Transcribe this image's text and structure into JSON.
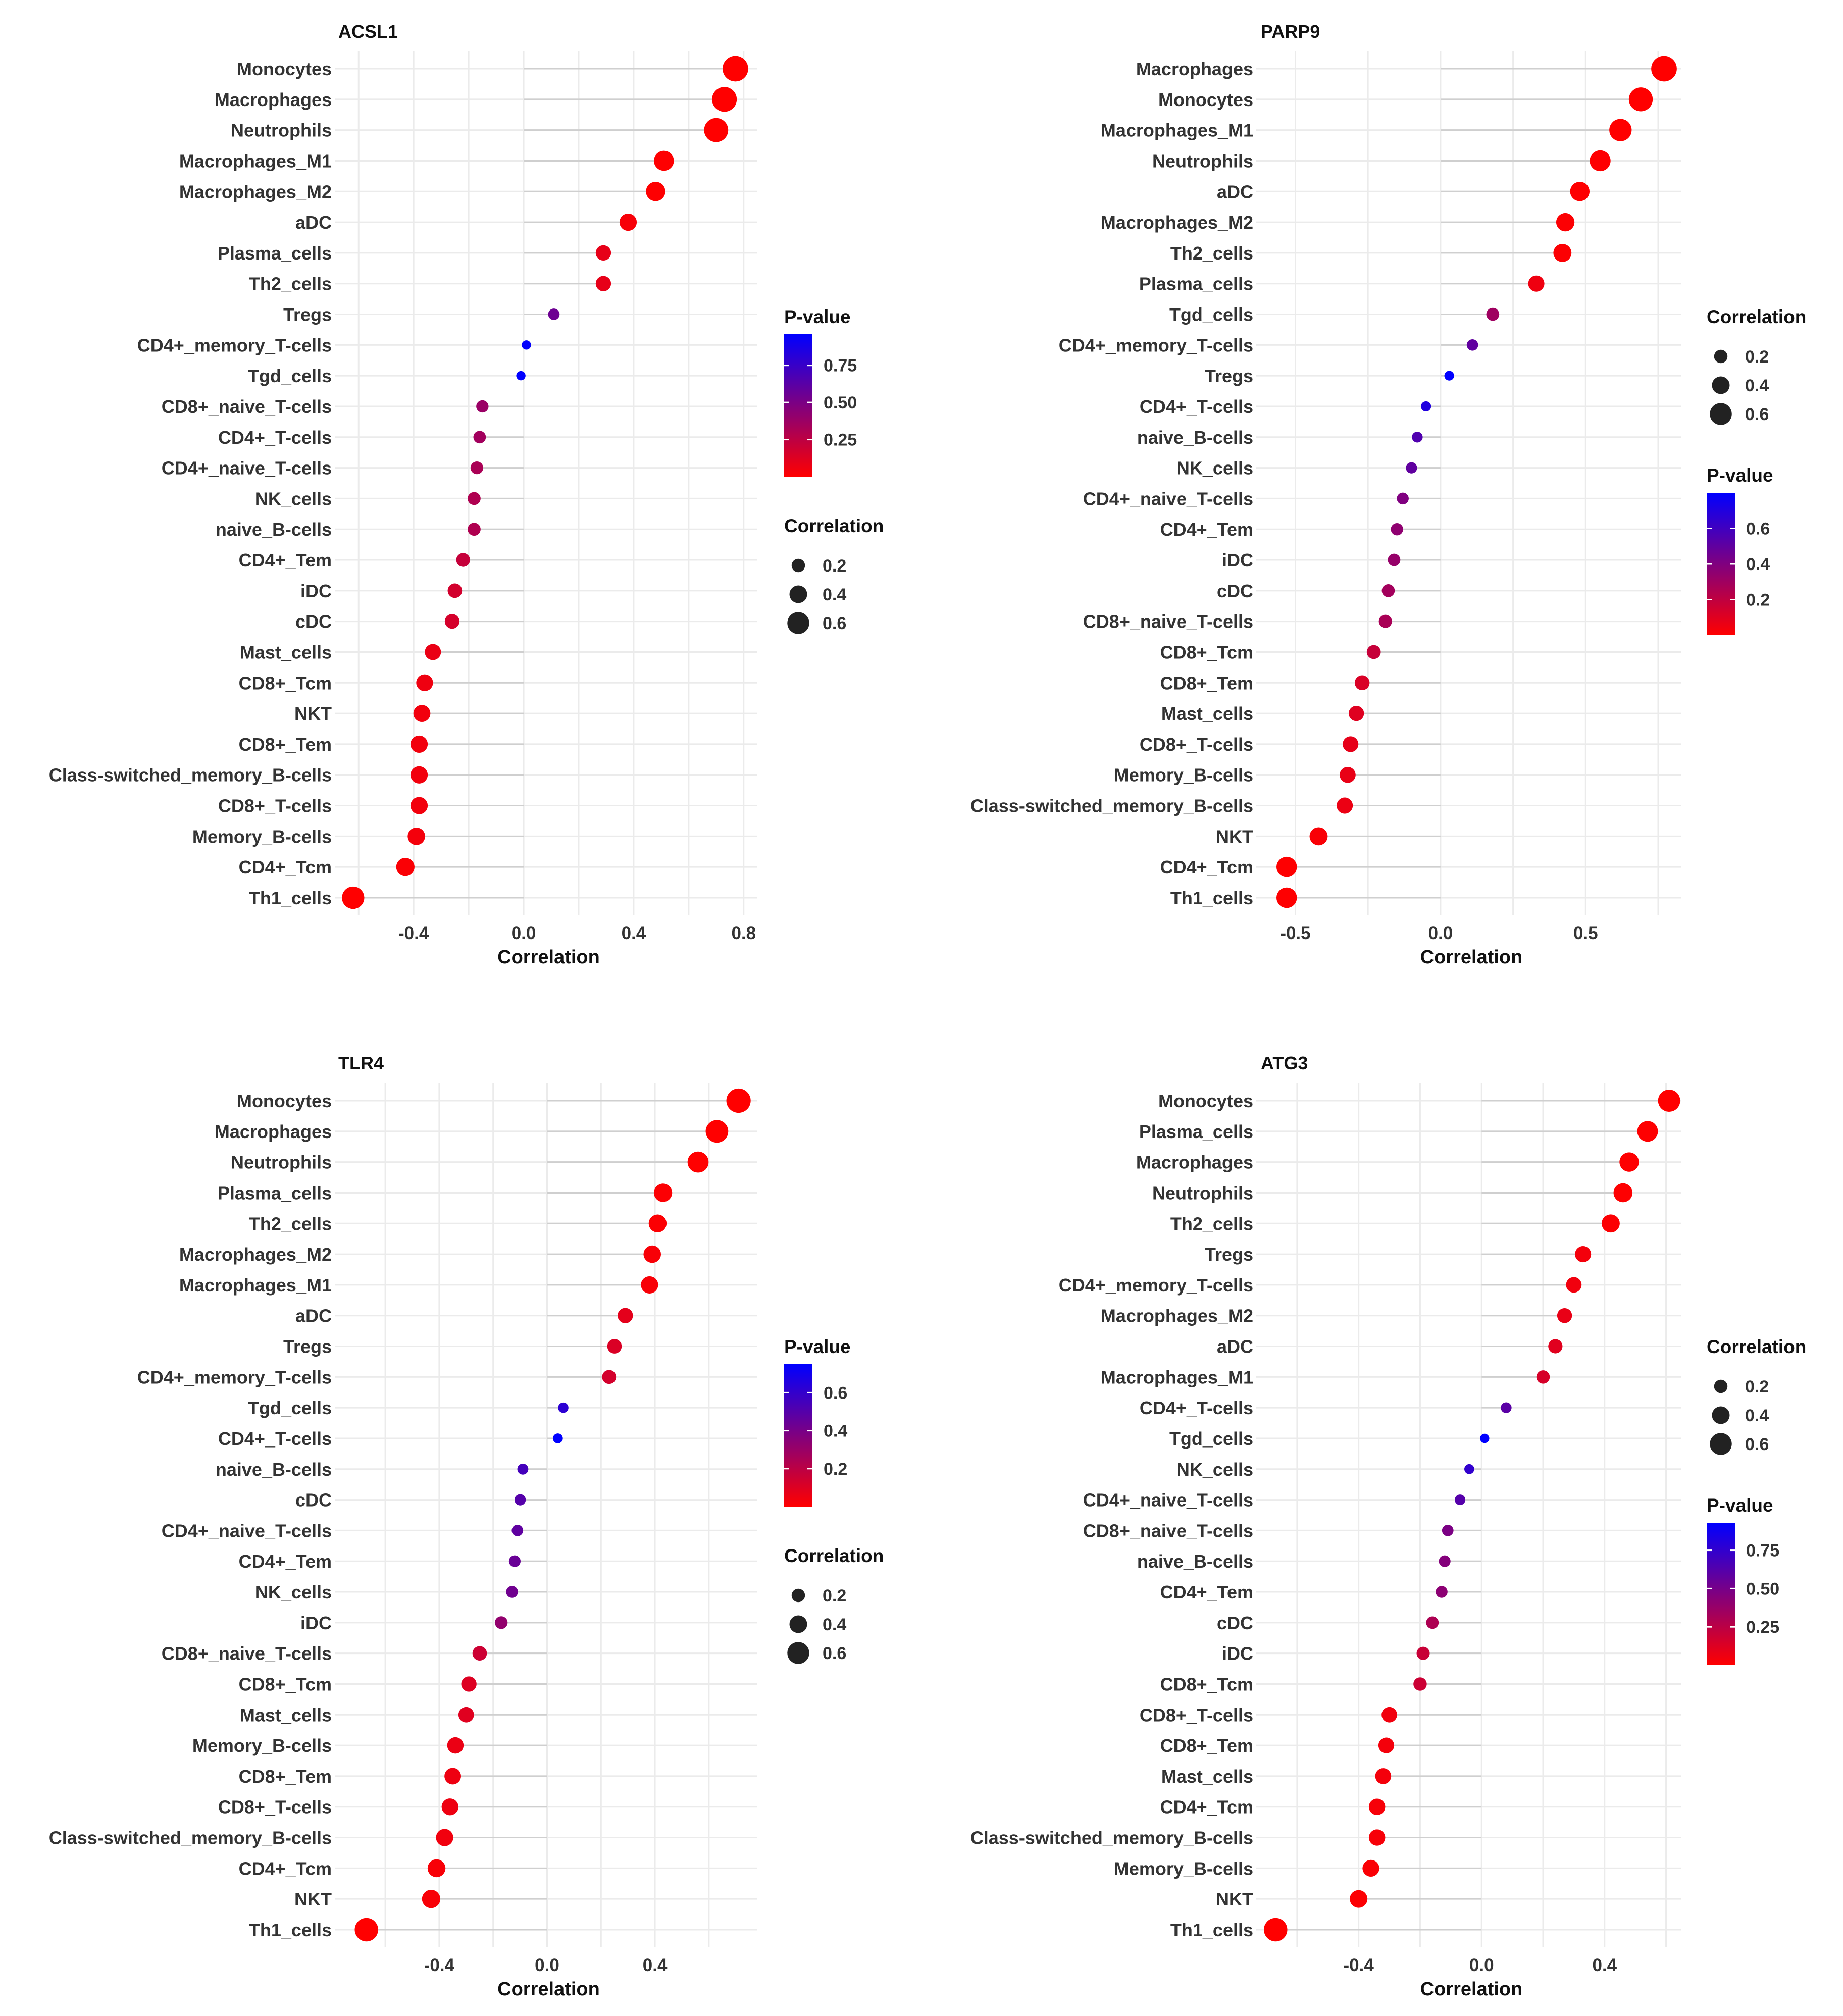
{
  "chart_data": [
    {
      "type": "lollipop",
      "title": "ACSL1",
      "xlabel": "Correlation",
      "xlim": [
        -0.65,
        0.85
      ],
      "xticks": [
        -0.4,
        0.0,
        0.4,
        0.8
      ],
      "xtick_labels": [
        "-0.4",
        "0.0",
        "0.4",
        "0.8"
      ],
      "categories": [
        "Monocytes",
        "Macrophages",
        "Neutrophils",
        "Macrophages_M1",
        "Macrophages_M2",
        "aDC",
        "Plasma_cells",
        "Th2_cells",
        "Tregs",
        "CD4+_memory_T-cells",
        "Tgd_cells",
        "CD8+_naive_T-cells",
        "CD4+_T-cells",
        "CD4+_naive_T-cells",
        "NK_cells",
        "naive_B-cells",
        "CD4+_Tem",
        "iDC",
        "cDC",
        "Mast_cells",
        "CD8+_Tcm",
        "NKT",
        "CD8+_Tem",
        "Class-switched_memory_B-cells",
        "CD8+_T-cells",
        "Memory_B-cells",
        "CD4+_Tcm",
        "Th1_cells"
      ],
      "values": [
        0.77,
        0.73,
        0.7,
        0.51,
        0.48,
        0.38,
        0.29,
        0.29,
        0.11,
        0.01,
        -0.01,
        -0.15,
        -0.16,
        -0.17,
        -0.18,
        -0.18,
        -0.22,
        -0.25,
        -0.26,
        -0.33,
        -0.36,
        -0.37,
        -0.38,
        -0.38,
        -0.38,
        -0.39,
        -0.43,
        -0.62
      ],
      "pvalues": [
        0.001,
        0.001,
        0.001,
        0.003,
        0.004,
        0.03,
        0.09,
        0.09,
        0.55,
        0.95,
        0.96,
        0.38,
        0.35,
        0.32,
        0.3,
        0.3,
        0.22,
        0.17,
        0.16,
        0.08,
        0.06,
        0.05,
        0.05,
        0.05,
        0.05,
        0.04,
        0.02,
        0.001
      ],
      "legend_order": [
        "pvalue",
        "size"
      ],
      "pvalue_legend": {
        "title": "P-value",
        "min": 0.0,
        "max": 0.96,
        "ticks": [
          0.75,
          0.5,
          0.25
        ],
        "tick_labels": [
          "0.75",
          "0.50",
          "0.25"
        ]
      },
      "size_legend": {
        "title": "Correlation",
        "values": [
          0.2,
          0.4,
          0.6
        ],
        "labels": [
          "0.2",
          "0.4",
          "0.6"
        ]
      },
      "colors": {
        "low_p": "#ff0000",
        "high_p": "#0000ff"
      }
    },
    {
      "type": "lollipop",
      "title": "PARP9",
      "xlabel": "Correlation",
      "xlim": [
        -0.6,
        0.83
      ],
      "xticks": [
        -0.5,
        0.0,
        0.5
      ],
      "xtick_labels": [
        "-0.5",
        "0.0",
        "0.5"
      ],
      "categories": [
        "Macrophages",
        "Monocytes",
        "Macrophages_M1",
        "Neutrophils",
        "aDC",
        "Macrophages_M2",
        "Th2_cells",
        "Plasma_cells",
        "Tgd_cells",
        "CD4+_memory_T-cells",
        "Tregs",
        "CD4+_T-cells",
        "naive_B-cells",
        "NK_cells",
        "CD4+_naive_T-cells",
        "CD4+_Tem",
        "iDC",
        "cDC",
        "CD8+_naive_T-cells",
        "CD8+_Tcm",
        "CD8+_Tem",
        "Mast_cells",
        "CD8+_T-cells",
        "Memory_B-cells",
        "Class-switched_memory_B-cells",
        "NKT",
        "CD4+_Tcm",
        "Th1_cells"
      ],
      "values": [
        0.77,
        0.69,
        0.62,
        0.55,
        0.48,
        0.43,
        0.42,
        0.33,
        0.18,
        0.11,
        0.03,
        -0.05,
        -0.08,
        -0.1,
        -0.13,
        -0.15,
        -0.16,
        -0.18,
        -0.19,
        -0.23,
        -0.27,
        -0.29,
        -0.31,
        -0.32,
        -0.33,
        -0.42,
        -0.53,
        -0.53
      ],
      "pvalues": [
        0.001,
        0.001,
        0.001,
        0.002,
        0.004,
        0.01,
        0.01,
        0.05,
        0.3,
        0.5,
        0.8,
        0.7,
        0.55,
        0.5,
        0.4,
        0.35,
        0.33,
        0.29,
        0.27,
        0.18,
        0.12,
        0.1,
        0.08,
        0.07,
        0.06,
        0.02,
        0.003,
        0.003
      ],
      "legend_order": [
        "size",
        "pvalue"
      ],
      "pvalue_legend": {
        "title": "P-value",
        "min": 0.0,
        "max": 0.8,
        "ticks": [
          0.6,
          0.4,
          0.2
        ],
        "tick_labels": [
          "0.6",
          "0.4",
          "0.2"
        ]
      },
      "size_legend": {
        "title": "Correlation",
        "values": [
          0.2,
          0.4,
          0.6
        ],
        "labels": [
          "0.2",
          "0.4",
          "0.6"
        ]
      },
      "colors": {
        "low_p": "#ff0000",
        "high_p": "#0000ff"
      }
    },
    {
      "type": "lollipop",
      "title": "TLR4",
      "xlabel": "Correlation",
      "xlim": [
        -0.75,
        0.78
      ],
      "xticks": [
        -0.4,
        0.0,
        0.4
      ],
      "xtick_labels": [
        "-0.4",
        "0.0",
        "0.4"
      ],
      "categories": [
        "Monocytes",
        "Macrophages",
        "Neutrophils",
        "Plasma_cells",
        "Th2_cells",
        "Macrophages_M2",
        "Macrophages_M1",
        "aDC",
        "Tregs",
        "CD4+_memory_T-cells",
        "Tgd_cells",
        "CD4+_T-cells",
        "naive_B-cells",
        "cDC",
        "CD4+_naive_T-cells",
        "CD4+_Tem",
        "NK_cells",
        "iDC",
        "CD8+_naive_T-cells",
        "CD8+_Tcm",
        "Mast_cells",
        "Memory_B-cells",
        "CD8+_Tem",
        "CD8+_T-cells",
        "Class-switched_memory_B-cells",
        "CD4+_Tcm",
        "NKT",
        "Th1_cells"
      ],
      "values": [
        0.71,
        0.63,
        0.56,
        0.43,
        0.41,
        0.39,
        0.38,
        0.29,
        0.25,
        0.23,
        0.06,
        0.04,
        -0.09,
        -0.1,
        -0.11,
        -0.12,
        -0.13,
        -0.17,
        -0.25,
        -0.29,
        -0.3,
        -0.34,
        -0.35,
        -0.36,
        -0.38,
        -0.41,
        -0.43,
        -0.67
      ],
      "pvalues": [
        0.001,
        0.001,
        0.001,
        0.01,
        0.01,
        0.02,
        0.02,
        0.08,
        0.11,
        0.13,
        0.62,
        0.75,
        0.55,
        0.5,
        0.47,
        0.44,
        0.42,
        0.32,
        0.15,
        0.1,
        0.09,
        0.06,
        0.05,
        0.05,
        0.04,
        0.02,
        0.02,
        0.001
      ],
      "legend_order": [
        "pvalue",
        "size"
      ],
      "pvalue_legend": {
        "title": "P-value",
        "min": 0.0,
        "max": 0.75,
        "ticks": [
          0.6,
          0.4,
          0.2
        ],
        "tick_labels": [
          "0.6",
          "0.4",
          "0.2"
        ]
      },
      "size_legend": {
        "title": "Correlation",
        "values": [
          0.2,
          0.4,
          0.6
        ],
        "labels": [
          "0.2",
          "0.4",
          "0.6"
        ]
      },
      "colors": {
        "low_p": "#ff0000",
        "high_p": "#0000ff"
      }
    },
    {
      "type": "lollipop",
      "title": "ATG3",
      "xlabel": "Correlation",
      "xlim": [
        -0.7,
        0.65
      ],
      "xticks": [
        -0.4,
        0.0,
        0.4
      ],
      "xtick_labels": [
        "-0.4",
        "0.0",
        "0.4"
      ],
      "categories": [
        "Monocytes",
        "Plasma_cells",
        "Macrophages",
        "Neutrophils",
        "Th2_cells",
        "Tregs",
        "CD4+_memory_T-cells",
        "Macrophages_M2",
        "aDC",
        "Macrophages_M1",
        "CD4+_T-cells",
        "Tgd_cells",
        "NK_cells",
        "CD4+_naive_T-cells",
        "CD8+_naive_T-cells",
        "naive_B-cells",
        "CD4+_Tem",
        "cDC",
        "iDC",
        "CD8+_Tcm",
        "CD8+_T-cells",
        "CD8+_Tem",
        "Mast_cells",
        "CD4+_Tcm",
        "Class-switched_memory_B-cells",
        "Memory_B-cells",
        "NKT",
        "Th1_cells"
      ],
      "values": [
        0.61,
        0.54,
        0.48,
        0.46,
        0.42,
        0.33,
        0.3,
        0.27,
        0.24,
        0.2,
        0.08,
        0.01,
        -0.04,
        -0.07,
        -0.11,
        -0.12,
        -0.13,
        -0.16,
        -0.19,
        -0.2,
        -0.3,
        -0.31,
        -0.32,
        -0.34,
        -0.34,
        -0.36,
        -0.4,
        -0.67
      ],
      "pvalues": [
        0.001,
        0.002,
        0.003,
        0.004,
        0.01,
        0.04,
        0.05,
        0.08,
        0.11,
        0.15,
        0.6,
        0.93,
        0.75,
        0.62,
        0.48,
        0.45,
        0.42,
        0.3,
        0.2,
        0.19,
        0.05,
        0.04,
        0.04,
        0.03,
        0.03,
        0.02,
        0.01,
        0.001
      ],
      "legend_order": [
        "size",
        "pvalue"
      ],
      "pvalue_legend": {
        "title": "P-value",
        "min": 0.0,
        "max": 0.93,
        "ticks": [
          0.75,
          0.5,
          0.25
        ],
        "tick_labels": [
          "0.75",
          "0.50",
          "0.25"
        ]
      },
      "size_legend": {
        "title": "Correlation",
        "values": [
          0.2,
          0.4,
          0.6
        ],
        "labels": [
          "0.2",
          "0.4",
          "0.6"
        ]
      },
      "colors": {
        "low_p": "#ff0000",
        "high_p": "#0000ff"
      }
    }
  ]
}
